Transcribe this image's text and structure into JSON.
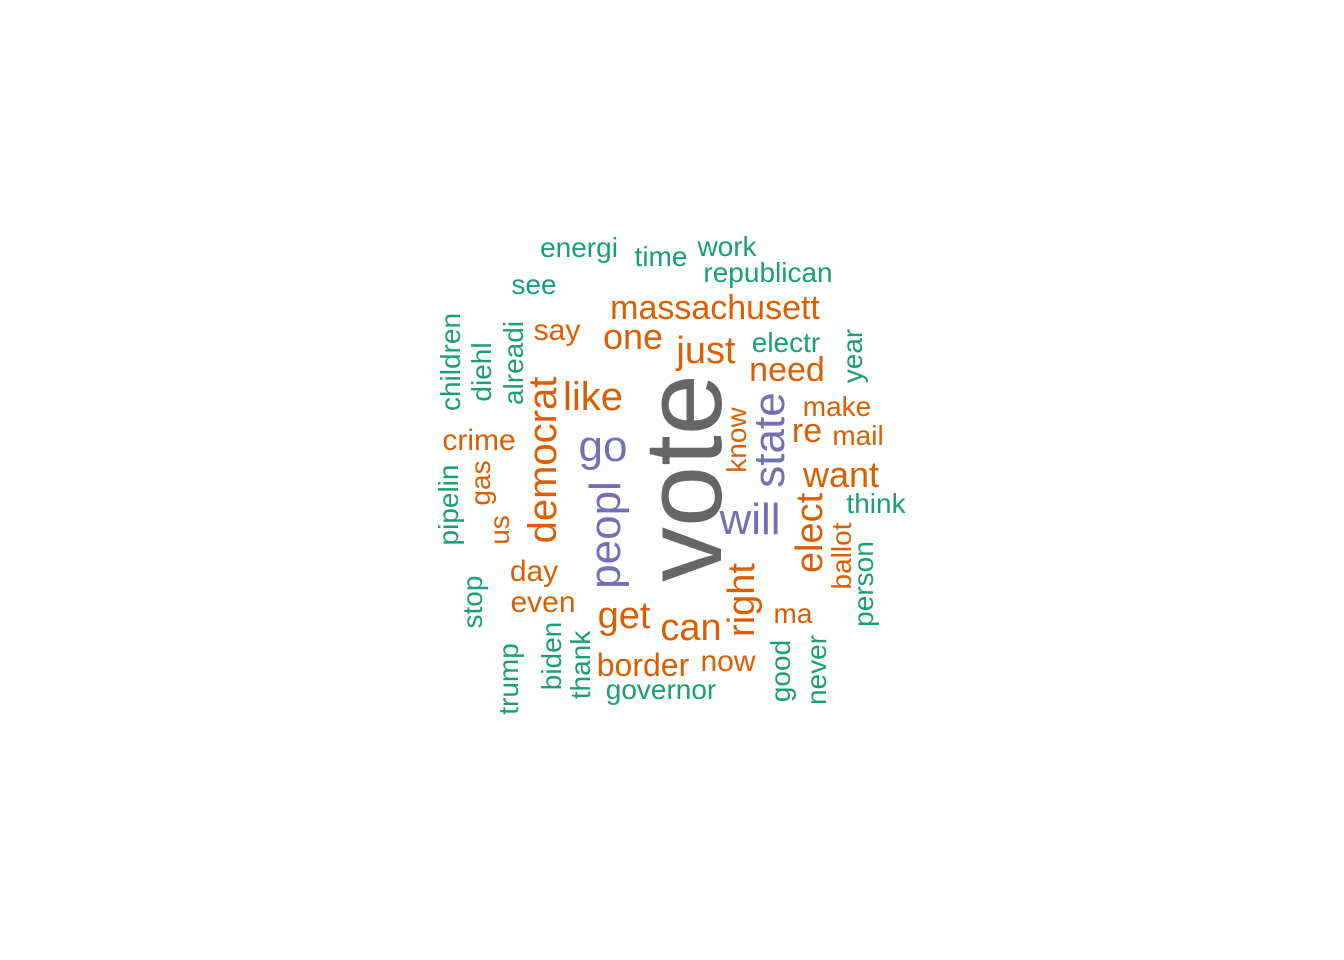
{
  "colors": {
    "vote": "#666666",
    "purple": "#7570b3",
    "orange": "#d95f02",
    "green": "#1b9e77"
  },
  "words": {
    "vote": "vote",
    "go": "go",
    "peopl": "peopl",
    "will": "will",
    "state": "state",
    "massachusett": "massachusett",
    "one": "one",
    "just": "just",
    "like": "like",
    "need": "need",
    "democrat": "democrat",
    "want": "want",
    "elect": "elect",
    "right": "right",
    "get": "get",
    "can": "can",
    "border": "border",
    "now": "now",
    "ma": "ma",
    "re": "re",
    "make": "make",
    "mail": "mail",
    "know": "know",
    "crime": "crime",
    "gas": "gas",
    "us": "us",
    "say": "say",
    "day": "day",
    "even": "even",
    "ballot": "ballot",
    "energi": "energi",
    "time": "time",
    "work": "work",
    "republican": "republican",
    "see": "see",
    "electr": "electr",
    "year": "year",
    "children": "children",
    "diehl": "diehl",
    "alreadi": "alreadi",
    "think": "think",
    "pipelin": "pipelin",
    "person": "person",
    "stop": "stop",
    "trump": "trump",
    "biden": "biden",
    "thank": "thank",
    "governor": "governor",
    "good": "good",
    "never": "never"
  }
}
